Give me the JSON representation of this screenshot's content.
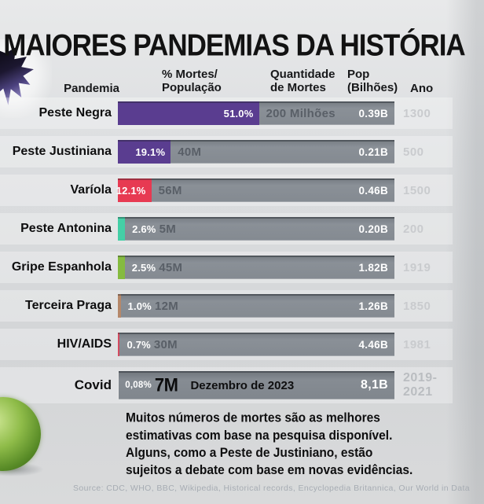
{
  "title": "MAIORES PANDEMIAS DA HISTÓRIA",
  "columns": {
    "pandemic": "Pandemia",
    "pct_line1": "% Mortes/",
    "pct_line2": "População",
    "deaths_line1": "Quantidade",
    "deaths_line2": "de Mortes",
    "pop_line1": "Pop",
    "pop_line2": "(Bilhões)",
    "year": "Ano"
  },
  "rows": [
    {
      "name": "Peste Negra",
      "pct": 51.0,
      "pct_label": "51.0%",
      "pct_inside": true,
      "color": "#5a3d90",
      "deaths": "200 Milhões",
      "pop": "0.39B",
      "year": "1300"
    },
    {
      "name": "Peste Justiniana",
      "pct": 19.1,
      "pct_label": "19.1%",
      "pct_inside": true,
      "color": "#5a3d90",
      "deaths": "40M",
      "pop": "0.21B",
      "year": "500"
    },
    {
      "name": "Varíola",
      "pct": 12.1,
      "pct_label": "12.1%",
      "pct_inside": true,
      "color": "#e73a52",
      "deaths": "56M",
      "pop": "0.46B",
      "year": "1500"
    },
    {
      "name": "Peste Antonina",
      "pct": 2.6,
      "pct_label": "2.6%",
      "pct_inside": false,
      "color": "#44cfa6",
      "deaths": "5M",
      "pop": "0.20B",
      "year": "200"
    },
    {
      "name": "Gripe Espanhola",
      "pct": 2.5,
      "pct_label": "2.5%",
      "pct_inside": false,
      "color": "#85bb40",
      "deaths": "45M",
      "pop": "1.82B",
      "year": "1919"
    },
    {
      "name": "Terceira Praga",
      "pct": 1.0,
      "pct_label": "1.0%",
      "pct_inside": false,
      "color": "#b5886a",
      "deaths": "12M",
      "pop": "1.26B",
      "year": "1850"
    },
    {
      "name": "HIV/AIDS",
      "pct": 0.7,
      "pct_label": "0.7%",
      "pct_inside": false,
      "color": "#d44a60",
      "deaths": "30M",
      "pop": "4.46B",
      "year": "1981"
    },
    {
      "name": "Covid",
      "pct": 0.08,
      "pct_label": "0,08%",
      "pct_inside": false,
      "color": "#e8e8e8",
      "deaths": "7M",
      "date": "Dezembro de 2023",
      "pop": "8,1B",
      "year": "2019-2021",
      "emphasis": true
    }
  ],
  "note_lines": [
    "Muitos números de mortes são as melhores",
    "estimativas com base na pesquisa disponível.",
    "Alguns, como a Peste de Justiniano, estão",
    "sujeitos a debate com base em novas evidências."
  ],
  "source": "Source: CDC, WHO, BBC, Wikipedia, Historical records, Encyclopedia Britannica, Our World in Data",
  "colors": {
    "purple": "#5a3d90",
    "red": "#e73a52",
    "teal": "#44cfa6",
    "green": "#85bb40",
    "brown": "#b5886a",
    "crimson": "#d44a60",
    "bar_gray": "#848a91",
    "year_text": "#b2b5b9"
  },
  "chart_data": {
    "type": "bar",
    "title": "MAIORES PANDEMIAS DA HISTÓRIA",
    "categories": [
      "Peste Negra",
      "Peste Justiniana",
      "Varíola",
      "Peste Antonina",
      "Gripe Espanhola",
      "Terceira Praga",
      "HIV/AIDS",
      "Covid"
    ],
    "series": [
      {
        "name": "% Mortes/População",
        "values": [
          51.0,
          19.1,
          12.1,
          2.6,
          2.5,
          1.0,
          0.7,
          0.08
        ]
      },
      {
        "name": "Quantidade de Mortes",
        "values": [
          "200 Milhões",
          "40M",
          "56M",
          "5M",
          "45M",
          "12M",
          "30M",
          "7M (Dezembro de 2023)"
        ]
      },
      {
        "name": "Pop (Bilhões)",
        "values": [
          "0.39B",
          "0.21B",
          "0.46B",
          "0.20B",
          "1.82B",
          "1.26B",
          "4.46B",
          "8,1B"
        ]
      },
      {
        "name": "Ano",
        "values": [
          "1300",
          "500",
          "1500",
          "200",
          "1919",
          "1850",
          "1981",
          "2019-2021"
        ]
      }
    ],
    "xlabel": "Pandemia",
    "ylabel": "% Mortes/População",
    "ylim": [
      0,
      100
    ],
    "grid": false,
    "legend_position": "none",
    "orientation": "horizontal"
  }
}
